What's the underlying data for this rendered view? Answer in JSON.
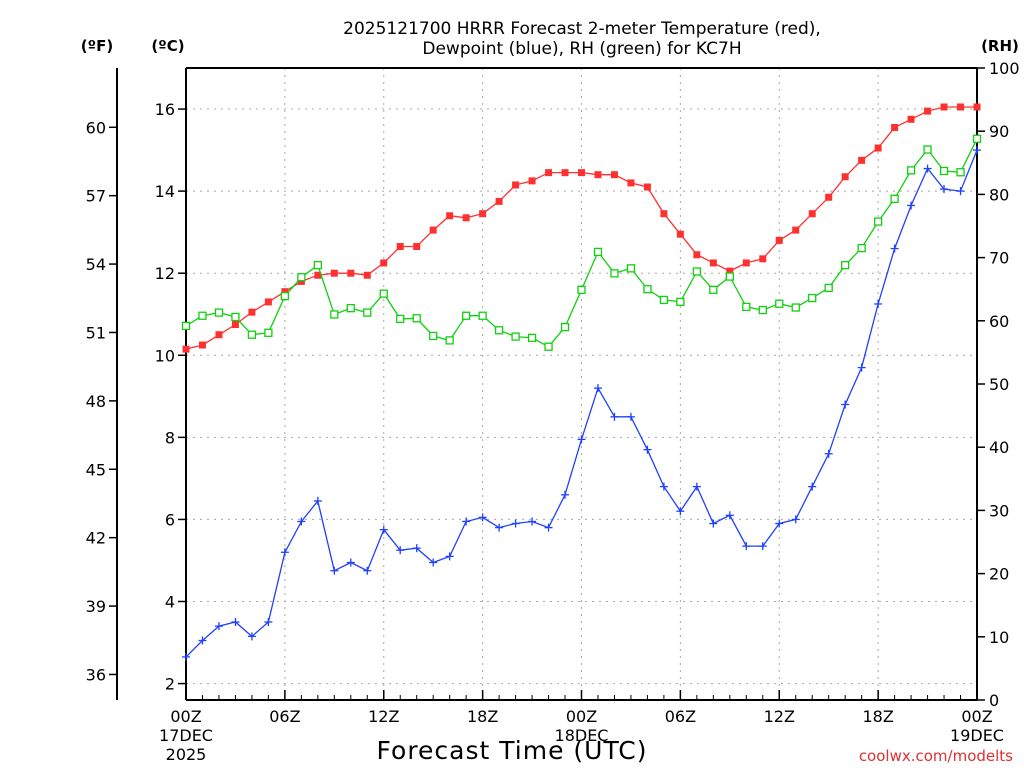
{
  "chart_data": {
    "type": "line",
    "title_line1": "2025121700 HRRR Forecast 2-meter Temperature (red),",
    "title_line2": "Dewpoint (blue), RH (green) for KC7H",
    "xlabel": "Forecast Time (UTC)",
    "credit": "coolwx.com/modelts",
    "left_unit_f": "(ºF)",
    "left_unit_c": "(ºC)",
    "right_unit": "(RH)",
    "x_hours": [
      0,
      1,
      2,
      3,
      4,
      5,
      6,
      7,
      8,
      9,
      10,
      11,
      12,
      13,
      14,
      15,
      16,
      17,
      18,
      19,
      20,
      21,
      22,
      23,
      24,
      25,
      26,
      27,
      28,
      29,
      30,
      31,
      32,
      33,
      34,
      35,
      36,
      37,
      38,
      39,
      40,
      41,
      42,
      43,
      44,
      45,
      46,
      47,
      48
    ],
    "xlim": [
      0,
      48
    ],
    "ylim_c": [
      1.6,
      17.0
    ],
    "ylim_rh": [
      0,
      100
    ],
    "y_ticks_c": [
      2,
      4,
      6,
      8,
      10,
      12,
      14,
      16
    ],
    "y_ticks_f": [
      36,
      39,
      42,
      45,
      48,
      51,
      54,
      57,
      60
    ],
    "y_ticks_rh": [
      0,
      10,
      20,
      30,
      40,
      50,
      60,
      70,
      80,
      90,
      100
    ],
    "x_ticks": [
      {
        "hour": 0,
        "label": "00Z",
        "sub1": "17DEC",
        "sub2": "2025"
      },
      {
        "hour": 6,
        "label": "06Z",
        "sub1": "",
        "sub2": ""
      },
      {
        "hour": 12,
        "label": "12Z",
        "sub1": "",
        "sub2": ""
      },
      {
        "hour": 18,
        "label": "18Z",
        "sub1": "",
        "sub2": ""
      },
      {
        "hour": 24,
        "label": "00Z",
        "sub1": "18DEC",
        "sub2": ""
      },
      {
        "hour": 30,
        "label": "06Z",
        "sub1": "",
        "sub2": ""
      },
      {
        "hour": 36,
        "label": "12Z",
        "sub1": "",
        "sub2": ""
      },
      {
        "hour": 42,
        "label": "18Z",
        "sub1": "",
        "sub2": ""
      },
      {
        "hour": 48,
        "label": "00Z",
        "sub1": "19DEC",
        "sub2": ""
      }
    ],
    "grid": true,
    "series": [
      {
        "name": "Temperature",
        "axis": "c",
        "color": "#ff3030",
        "marker": "filled-square",
        "values": [
          10.15,
          10.25,
          10.5,
          10.75,
          11.05,
          11.3,
          11.55,
          11.8,
          11.95,
          12.0,
          12.0,
          11.95,
          12.25,
          12.65,
          12.65,
          13.05,
          13.4,
          13.35,
          13.45,
          13.75,
          14.15,
          14.25,
          14.45,
          14.45,
          14.45,
          14.4,
          14.4,
          14.2,
          14.1,
          13.45,
          12.95,
          12.45,
          12.25,
          12.05,
          12.25,
          12.35,
          12.8,
          13.05,
          13.45,
          13.85,
          14.35,
          14.75,
          15.05,
          15.55,
          15.75,
          15.95,
          16.05,
          16.05,
          16.05
        ]
      },
      {
        "name": "Dewpoint",
        "axis": "c",
        "color": "#2040ff",
        "marker": "plus",
        "values": [
          2.65,
          3.05,
          3.4,
          3.5,
          3.15,
          3.5,
          5.2,
          5.95,
          6.45,
          4.75,
          4.95,
          4.75,
          5.75,
          5.25,
          5.3,
          4.95,
          5.1,
          5.95,
          6.05,
          5.8,
          5.9,
          5.95,
          5.8,
          6.6,
          7.95,
          9.2,
          8.5,
          8.5,
          7.7,
          6.8,
          6.2,
          6.8,
          5.9,
          6.1,
          5.35,
          5.35,
          5.9,
          6.0,
          6.8,
          7.6,
          8.8,
          9.7,
          11.25,
          12.6,
          13.65,
          14.55,
          14.05,
          14.0,
          15.0
        ]
      },
      {
        "name": "RH",
        "axis": "rh",
        "color": "#10d010",
        "marker": "open-square",
        "values": [
          59.2,
          60.8,
          61.3,
          60.6,
          57.8,
          58.1,
          63.9,
          66.9,
          68.8,
          61.0,
          62.0,
          61.3,
          64.3,
          60.3,
          60.4,
          57.6,
          56.9,
          60.8,
          60.8,
          58.5,
          57.5,
          57.3,
          55.9,
          59.0,
          64.9,
          70.9,
          67.5,
          68.3,
          65.0,
          63.3,
          63.0,
          67.8,
          64.9,
          67.0,
          62.2,
          61.7,
          62.7,
          62.1,
          63.6,
          65.2,
          68.8,
          71.5,
          75.7,
          79.3,
          83.8,
          87.1,
          83.7,
          83.5,
          88.8
        ]
      }
    ]
  }
}
